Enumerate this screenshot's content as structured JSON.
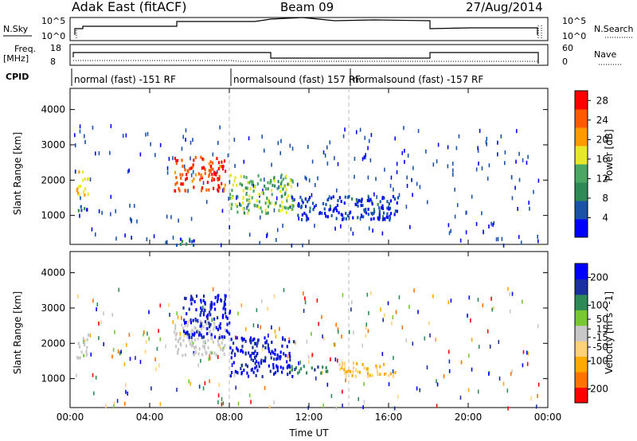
{
  "header": {
    "station": "Adak East (fitACF)",
    "beam": "Beam 09",
    "date": "27/Aug/2014"
  },
  "noise_panel": {
    "left_label": "N.Sky",
    "left_ticks": [
      "10^5",
      "10^0"
    ],
    "right_ticks": [
      "10^5",
      "10^0"
    ],
    "right_label": "N.Search"
  },
  "freq_panel": {
    "left_label_1": "Freq.",
    "left_label_2": "[MHz]",
    "left_ticks": [
      "18",
      "8"
    ],
    "right_ticks": [
      "60",
      "0"
    ],
    "right_label": "Nave"
  },
  "cpid": {
    "label": "CPID",
    "segments": [
      {
        "text": "normal (fast) -151 RF",
        "start_hour": 0.0
      },
      {
        "text": "normalsound (fast) 157 RF",
        "start_hour": 8.0
      },
      {
        "text": "normalsound (fast) -157 RF",
        "start_hour": 14.0
      }
    ]
  },
  "colors": {
    "power_scale": [
      "#0000ff",
      "#1a52a8",
      "#2e8b57",
      "#4aa864",
      "#e8e82a",
      "#ff9a00",
      "#ff5a00",
      "#ff0000"
    ],
    "velocity_scale": [
      "#ff0000",
      "#ff7300",
      "#ffaa00",
      "#ffd27a",
      "#c8c8c8",
      "#77c833",
      "#2e8b57",
      "#1a2fa0",
      "#0000ff"
    ]
  },
  "chart_data": [
    {
      "type": "heatmap",
      "title": "Power",
      "xlabel": "Time UT",
      "ylabel": "Slant Range [km]",
      "x_ticks": [
        "00:00",
        "04:00",
        "08:00",
        "12:00",
        "16:00",
        "20:00",
        "00:00"
      ],
      "xlim_hours": [
        0,
        24
      ],
      "y_ticks": [
        1000,
        2000,
        3000,
        4000
      ],
      "ylim_km": [
        180,
        4600
      ],
      "colorbar": {
        "label": "Power [dB]",
        "ticks": [
          4,
          8,
          12,
          16,
          20,
          24,
          28
        ],
        "range": [
          0,
          30
        ]
      },
      "features": [
        {
          "t_start": 0.3,
          "t_end": 0.9,
          "r_start": 1600,
          "r_end": 2300,
          "level": 18
        },
        {
          "t_start": 0.3,
          "t_end": 0.9,
          "r_start": 1100,
          "r_end": 1300,
          "level": 6
        },
        {
          "t_start": 5.2,
          "t_end": 7.8,
          "r_start": 1700,
          "r_end": 2700,
          "level": 26
        },
        {
          "t_start": 8.0,
          "t_end": 11.2,
          "r_start": 1100,
          "r_end": 2200,
          "level": 14
        },
        {
          "t_start": 11.0,
          "t_end": 16.5,
          "r_start": 900,
          "r_end": 1600,
          "level": 4
        },
        {
          "t_start": 5.2,
          "t_end": 6.5,
          "r_start": 200,
          "r_end": 400,
          "level": 6
        }
      ]
    },
    {
      "type": "heatmap",
      "title": "Velocity",
      "xlabel": "Time UT",
      "ylabel": "Slant Range [km]",
      "x_ticks": [
        "00:00",
        "04:00",
        "08:00",
        "12:00",
        "16:00",
        "20:00",
        "00:00"
      ],
      "xlim_hours": [
        0,
        24
      ],
      "y_ticks": [
        1000,
        2000,
        3000,
        4000
      ],
      "ylim_km": [
        180,
        4600
      ],
      "colorbar": {
        "label": "Velocity [m s^-1]",
        "ticks": [
          200,
          100,
          50,
          15,
          -15,
          -50,
          -100,
          -200
        ],
        "range": [
          -250,
          250
        ]
      },
      "features": [
        {
          "t_start": 0.3,
          "t_end": 0.9,
          "r_start": 1600,
          "r_end": 2300,
          "level": 0
        },
        {
          "t_start": 5.2,
          "t_end": 7.8,
          "r_start": 1700,
          "r_end": 2700,
          "level": 0
        },
        {
          "t_start": 5.6,
          "t_end": 8.0,
          "r_start": 2200,
          "r_end": 3400,
          "level": 200
        },
        {
          "t_start": 8.0,
          "t_end": 11.2,
          "r_start": 1100,
          "r_end": 2200,
          "level": 200
        },
        {
          "t_start": 13.5,
          "t_end": 16.3,
          "r_start": 1100,
          "r_end": 1500,
          "level": -80
        },
        {
          "t_start": 11.0,
          "t_end": 13.0,
          "r_start": 1200,
          "r_end": 1400,
          "level": 120
        }
      ]
    }
  ]
}
